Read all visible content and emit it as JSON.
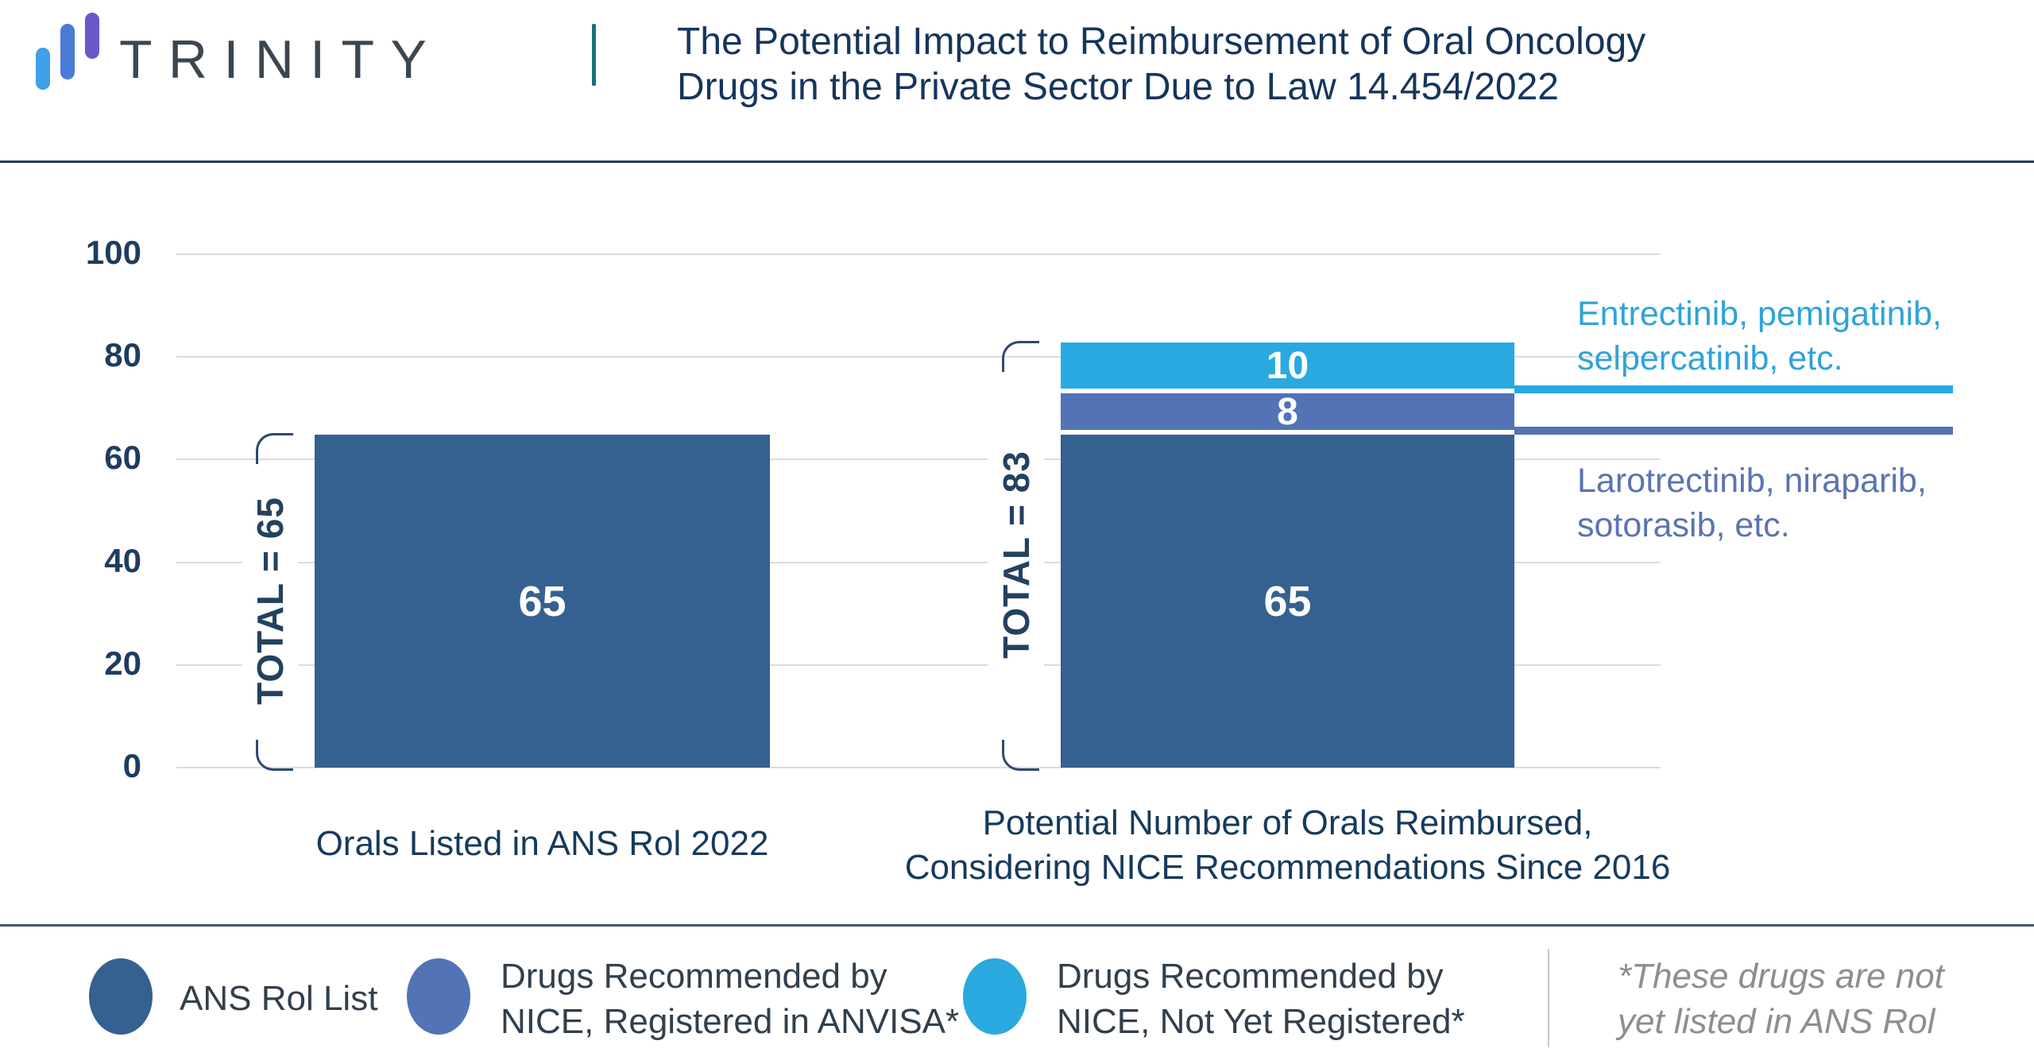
{
  "brand": {
    "logo_text": "TRINITY",
    "logo_bar_colors": [
      "#3fa0e8",
      "#4a7bd5",
      "#6a58c8"
    ],
    "divider_color": "#17707a"
  },
  "header": {
    "title_lines": [
      "The Potential Impact to Reimbursement of Oral Oncology",
      "Drugs in the Private Sector Due to Law 14.454/2022"
    ]
  },
  "chart_data": {
    "type": "bar",
    "stacked": true,
    "grid": true,
    "ylim": [
      0,
      100
    ],
    "y_ticks": [
      0,
      20,
      40,
      60,
      80,
      100
    ],
    "bars": [
      {
        "category_lines": [
          "Orals Listed in ANS Rol 2022"
        ],
        "total": 65,
        "total_label": "TOTAL = 65",
        "segments": [
          {
            "name": "ANS Rol List",
            "value": 65,
            "label": "65",
            "color": "#34618f"
          }
        ]
      },
      {
        "category_lines": [
          "Potential Number of Orals Reimbursed,",
          "Considering NICE Recommendations Since 2016"
        ],
        "total": 83,
        "total_label": "TOTAL = 83",
        "segments": [
          {
            "name": "ANS Rol List",
            "value": 65,
            "label": "65",
            "color": "#34618f"
          },
          {
            "name": "Drugs Recommended by NICE, Registered in ANVISA",
            "value": 8,
            "label": "8",
            "color": "#5273b5"
          },
          {
            "name": "Drugs Recommended by NICE, Not Yet Registered",
            "value": 10,
            "label": "10",
            "color": "#29a9e0"
          }
        ]
      }
    ],
    "annotations": [
      {
        "text_lines": [
          "Entrectinib, pemigatinib,",
          "selpercatinib, etc."
        ],
        "text_color": "#2fa3d9",
        "line_color": "#29a9e0",
        "at_value": 73,
        "text_position": "above"
      },
      {
        "text_lines": [
          "Larotrectinib, niraparib,",
          "sotorasib, etc."
        ],
        "text_color": "#5b73b2",
        "line_color": "#5273b5",
        "at_value": 65,
        "text_position": "below"
      }
    ]
  },
  "legend": {
    "items": [
      {
        "color": "#34618f",
        "lines": [
          "ANS Rol List"
        ]
      },
      {
        "color": "#5273b5",
        "lines": [
          "Drugs Recommended by",
          "NICE, Registered in ANVISA*"
        ]
      },
      {
        "color": "#29a9e0",
        "lines": [
          "Drugs Recommended by",
          "NICE, Not Yet Registered*"
        ]
      }
    ],
    "note_lines": [
      "*These drugs are not",
      "yet listed in ANS Rol"
    ]
  }
}
